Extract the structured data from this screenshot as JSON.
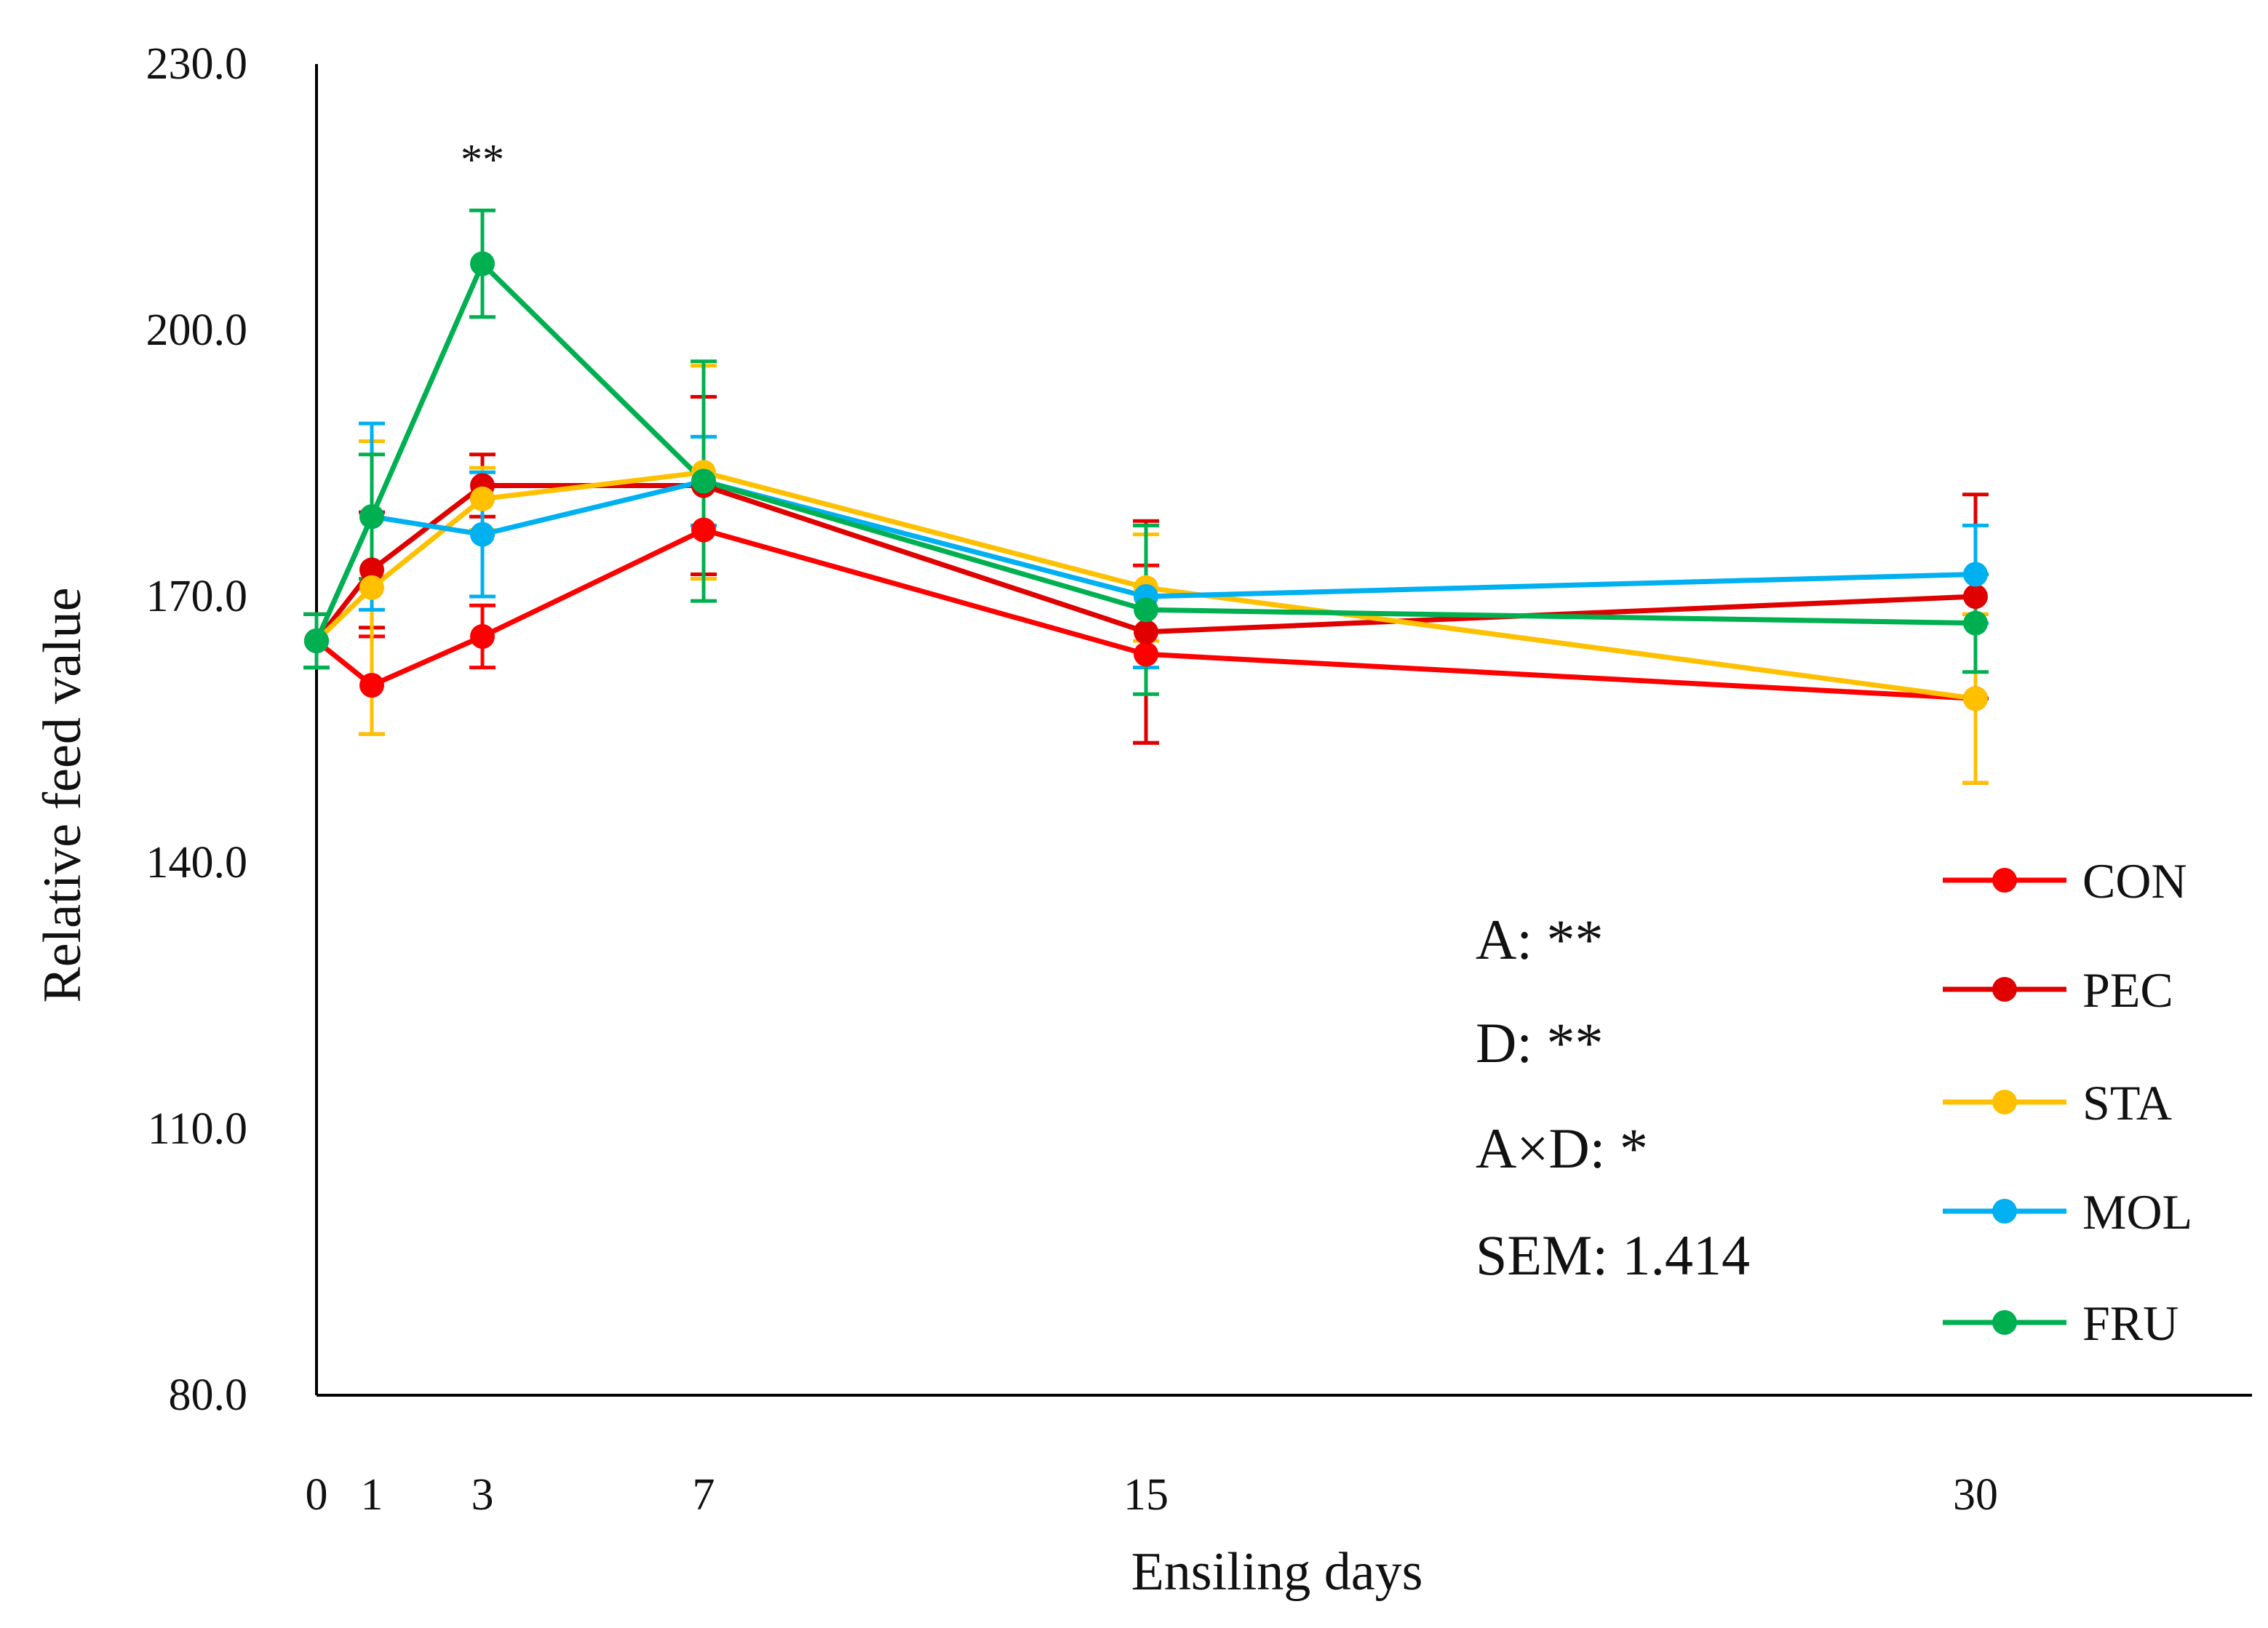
{
  "chart_data": {
    "type": "line",
    "title": "",
    "xlabel": "Ensiling days",
    "ylabel": "Relative feed value",
    "x": [
      0,
      1,
      3,
      7,
      15,
      30
    ],
    "xticks": [
      "0",
      "1",
      "3",
      "7",
      "15",
      "30"
    ],
    "xlim": [
      0,
      35
    ],
    "ylim": [
      80,
      230
    ],
    "yticks": [
      "80.0",
      "110.0",
      "140.0",
      "170.0",
      "200.0",
      "230.0"
    ],
    "grid": false,
    "legend_position": "bottom-right",
    "series": [
      {
        "name": "CON",
        "color": "#FF0000",
        "values": [
          165.0,
          160.0,
          165.5,
          177.5,
          163.5,
          158.5
        ],
        "errors": [
          3.0,
          5.5,
          3.5,
          5.0,
          10.0,
          9.5
        ]
      },
      {
        "name": "PEC",
        "color": "#E00000",
        "values": [
          165.0,
          173.0,
          182.5,
          182.5,
          166.0,
          170.0
        ],
        "errors": [
          3.0,
          6.5,
          3.5,
          10.0,
          12.5,
          11.5
        ]
      },
      {
        "name": "STA",
        "color": "#FFC000",
        "values": [
          165.0,
          171.0,
          181.0,
          184.0,
          171.0,
          158.5
        ],
        "errors": [
          3.0,
          16.5,
          3.5,
          12.0,
          6.0,
          9.5
        ]
      },
      {
        "name": "MOL",
        "color": "#00B0F0",
        "values": [
          165.0,
          179.0,
          177.0,
          183.0,
          170.0,
          172.5
        ],
        "errors": [
          3.0,
          10.5,
          7.0,
          5.0,
          8.0,
          5.5
        ]
      },
      {
        "name": "FRU",
        "color": "#00B050",
        "values": [
          165.0,
          179.0,
          207.5,
          183.0,
          168.5,
          167.0
        ],
        "errors": [
          3.0,
          7.0,
          6.0,
          13.5,
          9.5,
          5.5
        ]
      }
    ],
    "annotations": [
      {
        "text": "**",
        "x": 3,
        "anchor": "above-FRU"
      }
    ],
    "stats": {
      "A": "A: **",
      "D": "D: **",
      "AxD": "A×D: *",
      "SEM": "SEM: 1.414"
    }
  }
}
